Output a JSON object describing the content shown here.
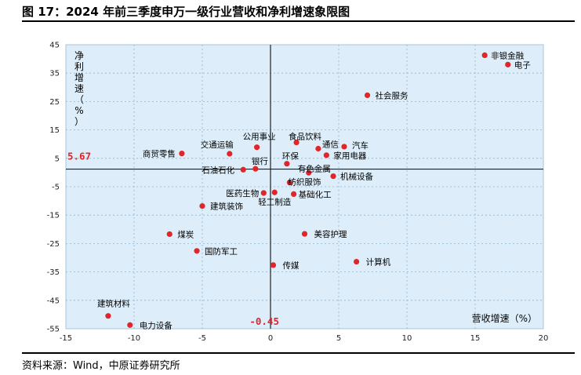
{
  "title": "图 17：2024 年前三季度申万一级行业营收和净利增速象限图",
  "source": "资料来源：Wind，中原证券研究所",
  "chart_data": {
    "type": "scatter",
    "title": "图 17：2024 年前三季度申万一级行业营收和净利增速象限图",
    "xlabel": "营收增速（%）",
    "ylabel": "净利增速（%）",
    "xlim": [
      -15,
      20
    ],
    "ylim": [
      -55,
      45
    ],
    "x_ticks": [
      -15,
      -10,
      -5,
      0,
      5,
      10,
      15,
      20
    ],
    "y_ticks": [
      45,
      35,
      25,
      15,
      5,
      -5,
      -15,
      -25,
      -35,
      -45,
      -55
    ],
    "grid": true,
    "point_color": "#e0262b",
    "reference_lines": {
      "x": 0,
      "y": 1.2
    },
    "mean_labels": {
      "y_mean": "5.67",
      "x_mean": "-0.45"
    },
    "points": [
      {
        "name": "非银金融",
        "x": 15.7,
        "y": 41.3
      },
      {
        "name": "电子",
        "x": 17.4,
        "y": 38.0
      },
      {
        "name": "社会服务",
        "x": 7.1,
        "y": 27.2
      },
      {
        "name": "食品饮料",
        "x": 1.9,
        "y": 10.6
      },
      {
        "name": "通信",
        "x": 3.5,
        "y": 8.4
      },
      {
        "name": "汽车",
        "x": 5.4,
        "y": 9.1
      },
      {
        "name": "家用电器",
        "x": 4.1,
        "y": 6.1
      },
      {
        "name": "公用事业",
        "x": -1.0,
        "y": 8.9
      },
      {
        "name": "交通运输",
        "x": -3.0,
        "y": 6.6
      },
      {
        "name": "商贸零售",
        "x": -6.5,
        "y": 6.7
      },
      {
        "name": "环保",
        "x": 1.2,
        "y": 3.1
      },
      {
        "name": "银行",
        "x": -1.1,
        "y": 1.3
      },
      {
        "name": "石油石化",
        "x": -2.0,
        "y": 1.0
      },
      {
        "name": "有色金属",
        "x": 2.8,
        "y": -0.1
      },
      {
        "name": "机械设备",
        "x": 4.6,
        "y": -1.3
      },
      {
        "name": "纺织服饰",
        "x": 1.4,
        "y": -3.5
      },
      {
        "name": "医药生物",
        "x": -0.5,
        "y": -7.2
      },
      {
        "name": "轻工制造",
        "x": 0.3,
        "y": -7.0
      },
      {
        "name": "基础化工",
        "x": 1.7,
        "y": -7.6
      },
      {
        "name": "建筑装饰",
        "x": -5.0,
        "y": -11.8
      },
      {
        "name": "美容护理",
        "x": 2.5,
        "y": -21.6
      },
      {
        "name": "煤炭",
        "x": -7.4,
        "y": -21.7
      },
      {
        "name": "国防军工",
        "x": -5.4,
        "y": -27.6
      },
      {
        "name": "计算机",
        "x": 6.3,
        "y": -31.4
      },
      {
        "name": "传媒",
        "x": 0.2,
        "y": -32.6
      },
      {
        "name": "建筑材料",
        "x": -11.9,
        "y": -50.5
      },
      {
        "name": "电力设备",
        "x": -10.3,
        "y": -53.7
      }
    ]
  }
}
